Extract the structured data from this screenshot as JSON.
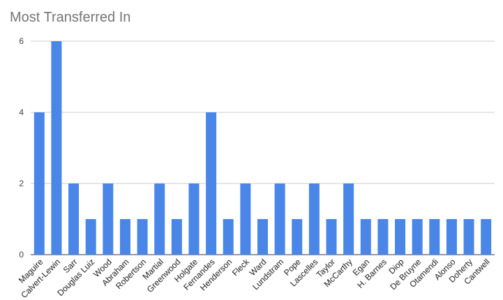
{
  "chart_data": {
    "type": "bar",
    "title": "Most Transferred In",
    "xlabel": "",
    "ylabel": "",
    "ylim": [
      0,
      6
    ],
    "yticks": [
      0,
      2,
      4,
      6
    ],
    "grid": true,
    "legend": "none",
    "bar_color": "#4a86e8",
    "categories": [
      "Maguire",
      "Calvert-Lewin",
      "Sarr",
      "Douglas Luiz",
      "Wood",
      "Abraham",
      "Robertson",
      "Martial",
      "Greenwood",
      "Holgate",
      "Fernandes",
      "Henderson",
      "Fleck",
      "Ward",
      "Lundstram",
      "Pope",
      "Lascelles",
      "Taylor",
      "McCarthy",
      "Egan",
      "H. Barnes",
      "Diop",
      "De Bruyne",
      "Otamendi",
      "Alonso",
      "Doherty",
      "Cantwell"
    ],
    "values": [
      4,
      6,
      2,
      1,
      2,
      1,
      1,
      2,
      1,
      2,
      4,
      1,
      2,
      1,
      2,
      1,
      2,
      1,
      2,
      1,
      1,
      1,
      1,
      1,
      1,
      1,
      1
    ]
  }
}
